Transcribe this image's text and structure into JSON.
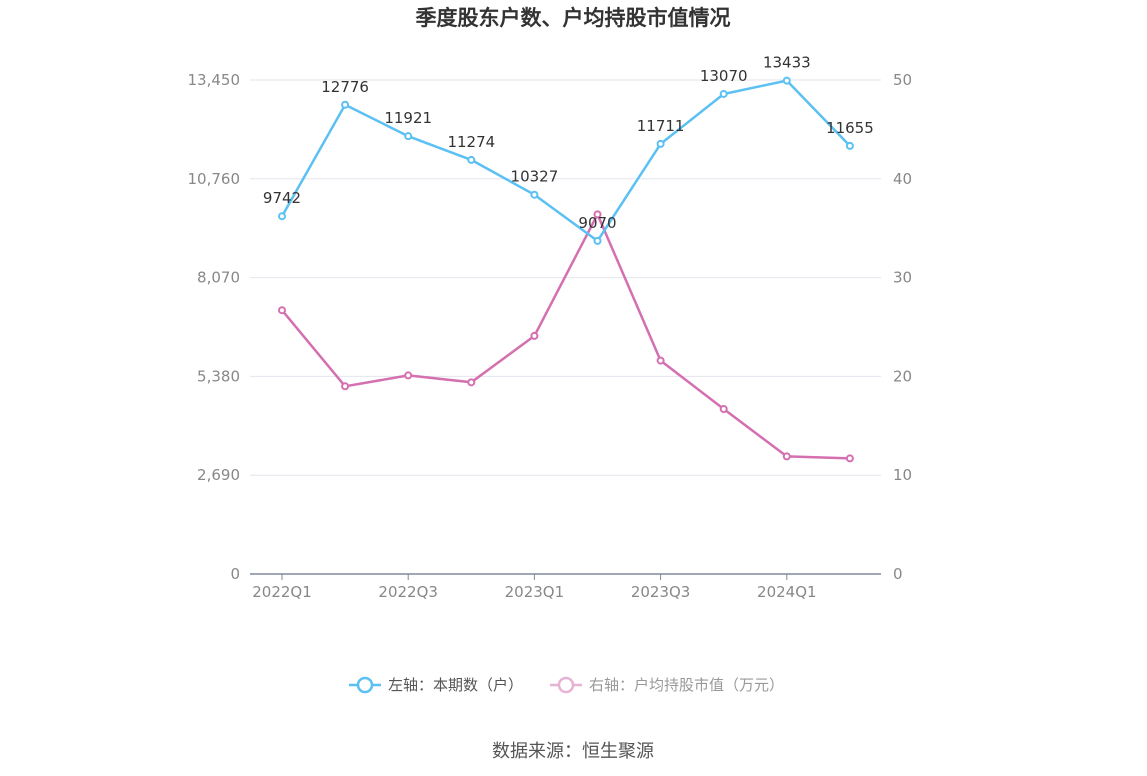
{
  "chart_data": {
    "type": "line",
    "title": "季度股东户数、户均持股市值情况",
    "source": "数据来源：恒生聚源",
    "categories": [
      "2022Q1",
      "2022Q2",
      "2022Q3",
      "2022Q4",
      "2023Q1",
      "2023Q2",
      "2023Q3",
      "2023Q4",
      "2024Q1",
      "2024Q2"
    ],
    "x_tick_labels": [
      "2022Q1",
      "2022Q3",
      "2023Q1",
      "2023Q3",
      "2024Q1"
    ],
    "left_axis": {
      "ticks": [
        "0",
        "2,690",
        "5,380",
        "8,070",
        "10,760",
        "13,450"
      ],
      "ylim": [
        0,
        13450
      ]
    },
    "right_axis": {
      "ticks": [
        "0",
        "10",
        "20",
        "30",
        "40",
        "50"
      ],
      "ylim": [
        0,
        50
      ]
    },
    "series": [
      {
        "name": "左轴：本期数（户）",
        "axis": "left",
        "color": "#5bc0f2",
        "values": [
          9742,
          12776,
          11921,
          11274,
          10327,
          9070,
          11711,
          13070,
          13433,
          11655
        ],
        "labels": [
          "9742",
          "12776",
          "11921",
          "11274",
          "10327",
          "9070",
          "11711",
          "13070",
          "13433",
          "11655"
        ]
      },
      {
        "name": "右轴：户均持股市值（万元）",
        "axis": "right",
        "color": "#d46fb0",
        "values": [
          26.7,
          19.0,
          20.1,
          19.4,
          24.1,
          36.4,
          21.6,
          16.7,
          11.9,
          11.7
        ]
      }
    ],
    "grid": true,
    "legend": "bottom-center"
  }
}
